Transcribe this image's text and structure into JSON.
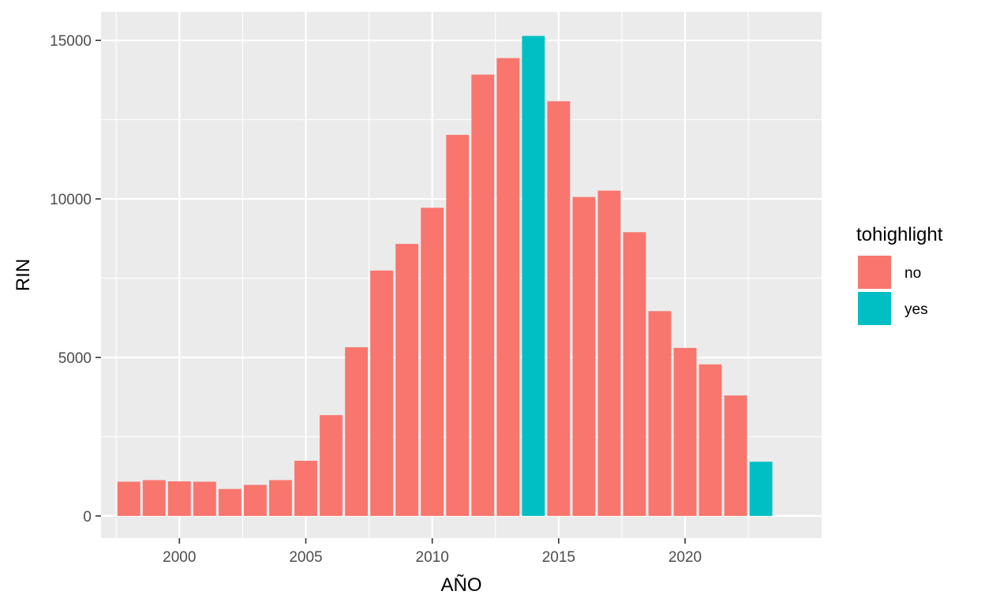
{
  "chart_data": {
    "type": "bar",
    "xlabel": "AÑO",
    "ylabel": "RIN",
    "x": [
      1998,
      1999,
      2000,
      2001,
      2002,
      2003,
      2004,
      2005,
      2006,
      2007,
      2008,
      2009,
      2010,
      2011,
      2012,
      2013,
      2014,
      2015,
      2016,
      2017,
      2018,
      2019,
      2020,
      2021,
      2022,
      2023
    ],
    "values": [
      1080,
      1130,
      1090,
      1080,
      850,
      980,
      1130,
      1740,
      3180,
      5320,
      7740,
      8580,
      9720,
      12020,
      13920,
      14440,
      15140,
      13080,
      10060,
      10260,
      8950,
      6460,
      5300,
      4780,
      3800,
      1710
    ],
    "highlight": [
      "no",
      "no",
      "no",
      "no",
      "no",
      "no",
      "no",
      "no",
      "no",
      "no",
      "no",
      "no",
      "no",
      "no",
      "no",
      "no",
      "yes",
      "no",
      "no",
      "no",
      "no",
      "no",
      "no",
      "no",
      "no",
      "yes"
    ],
    "xlim": [
      1996.9,
      2025.4
    ],
    "ylim": [
      -700,
      15900
    ],
    "xticks": [
      2000,
      2005,
      2010,
      2015,
      2020
    ],
    "yticks": [
      0,
      5000,
      10000,
      15000
    ],
    "grid": true,
    "legend": {
      "title": "tohighlight",
      "placement": "right",
      "entries": [
        {
          "label": "no",
          "color": "#F8766D"
        },
        {
          "label": "yes",
          "color": "#00BFC4"
        }
      ]
    },
    "colors": {
      "panel": "#EBEBEB",
      "grid": "#FFFFFF",
      "no": "#F8766D",
      "yes": "#00BFC4"
    }
  }
}
